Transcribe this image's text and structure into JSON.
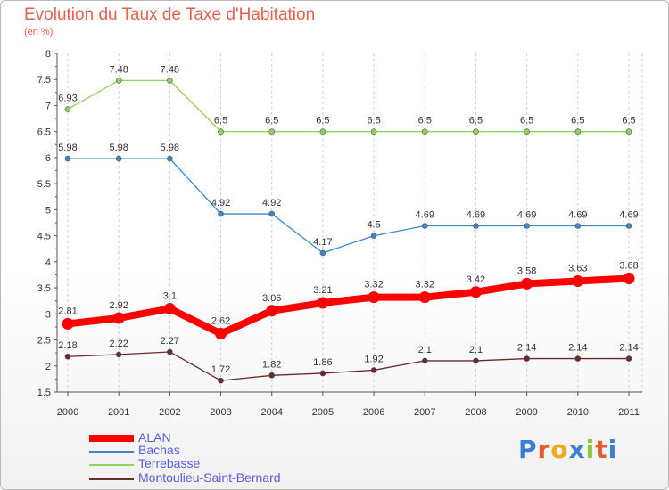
{
  "title": "Evolution du Taux de Taxe d'Habitation",
  "subtitle": "(en %)",
  "logo": "Proxiti",
  "chart_data": {
    "type": "line",
    "x": [
      "2000",
      "2001",
      "2002",
      "2003",
      "2004",
      "2005",
      "2006",
      "2007",
      "2008",
      "2009",
      "2010",
      "2011"
    ],
    "ylim": [
      1.5,
      8
    ],
    "yticks": [
      "1.5",
      "2",
      "2.5",
      "3",
      "3.5",
      "4",
      "4.5",
      "5",
      "5.5",
      "6",
      "6.5",
      "7",
      "7.5",
      "8"
    ],
    "grid": "vertical",
    "legend_position": "bottom-left",
    "series": [
      {
        "name": "ALAN",
        "color": "#ff0000",
        "values": [
          2.81,
          2.92,
          3.1,
          2.62,
          3.06,
          3.21,
          3.32,
          3.32,
          3.42,
          3.58,
          3.63,
          3.68
        ],
        "labels": [
          "2.81",
          "2.92",
          "3.1",
          "2.62",
          "3.06",
          "3.21",
          "3.32",
          "3.32",
          "3.42",
          "3.58",
          "3.63",
          "3.68"
        ]
      },
      {
        "name": "Bachas",
        "color": "#3f87c8",
        "values": [
          5.98,
          5.98,
          5.98,
          4.92,
          4.92,
          4.17,
          4.5,
          4.69,
          4.69,
          4.69,
          4.69,
          4.69
        ],
        "labels": [
          "5.98",
          "5.98",
          "5.98",
          "4.92",
          "4.92",
          "4.17",
          "4.5",
          "4.69",
          "4.69",
          "4.69",
          "4.69",
          "4.69"
        ]
      },
      {
        "name": "Terrebasse",
        "color": "#8ed35e",
        "values": [
          6.93,
          7.48,
          7.48,
          6.5,
          6.5,
          6.5,
          6.5,
          6.5,
          6.5,
          6.5,
          6.5,
          6.5
        ],
        "labels": [
          "6.93",
          "7.48",
          "7.48",
          "6.5",
          "6.5",
          "6.5",
          "6.5",
          "6.5",
          "6.5",
          "6.5",
          "6.5",
          "6.5"
        ]
      },
      {
        "name": "Montoulieu-Saint-Bernard",
        "color": "#6b2a2a",
        "values": [
          2.18,
          2.22,
          2.27,
          1.72,
          1.82,
          1.86,
          1.92,
          2.1,
          2.1,
          2.14,
          2.14,
          2.14
        ],
        "labels": [
          "2.18",
          "2.22",
          "2.27",
          "1.72",
          "1.82",
          "1.86",
          "1.92",
          "2.1",
          "2.1",
          "2.14",
          "2.14",
          "2.14"
        ]
      }
    ]
  }
}
